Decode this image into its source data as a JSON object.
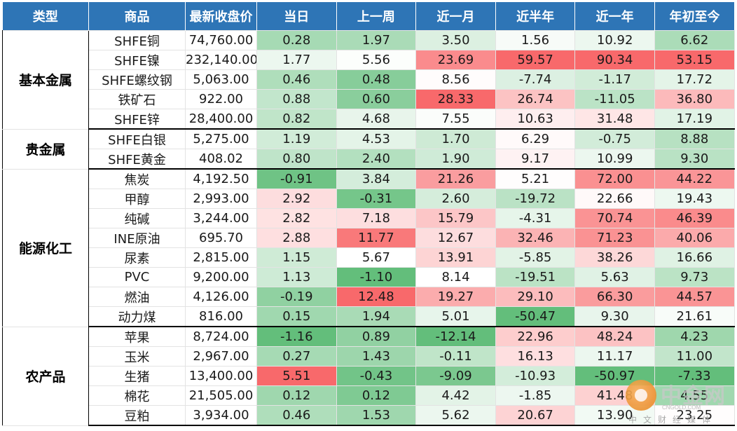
{
  "headers": [
    "类型",
    "商品",
    "最新收盘价",
    "当日",
    "上一周",
    "近一月",
    "近半年",
    "近一年",
    "年初至今"
  ],
  "groups": [
    {
      "category": "基本金属",
      "rows": [
        {
          "name": "SHFE铜",
          "price": "74,760.00",
          "values": [
            0.28,
            1.97,
            3.5,
            1.56,
            10.92,
            6.62
          ]
        },
        {
          "name": "SHFE镍",
          "price": "232,140.00",
          "values": [
            1.77,
            5.56,
            23.69,
            59.57,
            90.34,
            53.15
          ]
        },
        {
          "name": "SHFE螺纹钢",
          "price": "5,063.00",
          "values": [
            0.46,
            0.48,
            8.56,
            -7.74,
            -1.17,
            17.72
          ]
        },
        {
          "name": "铁矿石",
          "price": "922.00",
          "values": [
            0.88,
            0.6,
            28.33,
            26.74,
            -11.05,
            36.8
          ]
        },
        {
          "name": "SHFE锌",
          "price": "28,400.00",
          "values": [
            0.82,
            4.68,
            7.55,
            10.63,
            31.48,
            17.19
          ]
        }
      ]
    },
    {
      "category": "贵金属",
      "rows": [
        {
          "name": "SHFE白银",
          "price": "5,275.00",
          "values": [
            1.19,
            4.53,
            1.7,
            6.29,
            -0.75,
            8.88
          ]
        },
        {
          "name": "SHFE黄金",
          "price": "408.02",
          "values": [
            0.8,
            2.4,
            1.9,
            9.17,
            10.99,
            9.3
          ]
        }
      ]
    },
    {
      "category": "能源化工",
      "rows": [
        {
          "name": "焦炭",
          "price": "4,192.50",
          "values": [
            -0.91,
            3.84,
            21.26,
            5.21,
            72.0,
            44.22
          ]
        },
        {
          "name": "甲醇",
          "price": "2,993.00",
          "values": [
            2.92,
            -0.31,
            2.6,
            -19.72,
            22.66,
            19.43
          ]
        },
        {
          "name": "纯碱",
          "price": "3,244.00",
          "values": [
            2.82,
            7.18,
            15.79,
            -4.31,
            70.74,
            46.39
          ]
        },
        {
          "name": "INE原油",
          "price": "695.70",
          "values": [
            2.88,
            11.77,
            12.67,
            32.46,
            71.23,
            40.06
          ]
        },
        {
          "name": "尿素",
          "price": "2,815.00",
          "values": [
            1.15,
            5.67,
            13.91,
            -5.85,
            38.26,
            16.66
          ]
        },
        {
          "name": "PVC",
          "price": "9,200.00",
          "values": [
            1.13,
            -1.1,
            8.14,
            -19.51,
            5.63,
            9.73
          ]
        },
        {
          "name": "燃油",
          "price": "4,126.00",
          "values": [
            -0.19,
            12.48,
            19.27,
            29.1,
            66.3,
            44.57
          ]
        },
        {
          "name": "动力煤",
          "price": "816.00",
          "values": [
            0.15,
            1.94,
            5.01,
            -50.47,
            9.3,
            21.61
          ]
        }
      ]
    },
    {
      "category": "农产品",
      "rows": [
        {
          "name": "苹果",
          "price": "8,724.00",
          "values": [
            -1.16,
            0.89,
            -12.14,
            22.96,
            48.24,
            4.23
          ]
        },
        {
          "name": "玉米",
          "price": "2,967.00",
          "values": [
            0.27,
            1.43,
            -0.11,
            16.13,
            11.17,
            11.0
          ]
        },
        {
          "name": "生猪",
          "price": "13,400.00",
          "values": [
            5.51,
            -0.43,
            -9.09,
            -10.93,
            -50.97,
            -7.33
          ]
        },
        {
          "name": "棉花",
          "price": "21,505.00",
          "values": [
            0.12,
            0.12,
            4.42,
            -1.85,
            41.48,
            4.55
          ]
        },
        {
          "name": "豆粕",
          "price": "3,934.00",
          "values": [
            0.46,
            1.53,
            5.62,
            20.67,
            13.9,
            23.25
          ]
        }
      ]
    }
  ],
  "colors": {
    "header_bg": "#2e75b6",
    "positive": "#f8696b",
    "negative": "#63be7b",
    "neutral": "#ffffff"
  },
  "watermark": {
    "cn": "中金网",
    "en": "CNGOLD.COM",
    "sub": "中文财经媒体"
  }
}
